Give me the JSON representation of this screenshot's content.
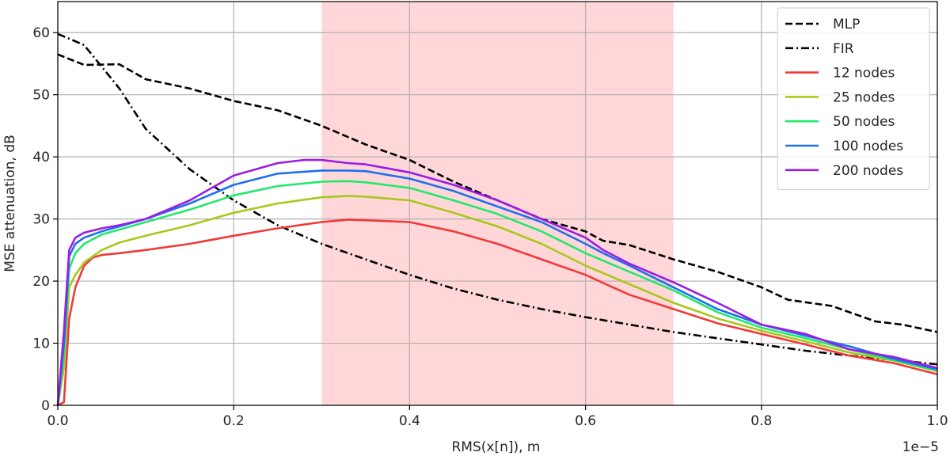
{
  "chart_data": {
    "type": "line",
    "title": "",
    "xlabel": "RMS(x[n]), m",
    "ylabel": "MSE attenuation, dB",
    "x_offset_label": "1e−5",
    "xlim": [
      0.0,
      1.0
    ],
    "ylim": [
      0,
      65
    ],
    "x_ticks": [
      0.0,
      0.2,
      0.4,
      0.6,
      0.8,
      1.0
    ],
    "x_tick_labels": [
      "0.0",
      "0.2",
      "0.4",
      "0.6",
      "0.8",
      "1.0"
    ],
    "y_ticks": [
      0,
      10,
      20,
      30,
      40,
      50,
      60
    ],
    "y_tick_labels": [
      "0",
      "10",
      "20",
      "30",
      "40",
      "50",
      "60"
    ],
    "grid": true,
    "legend_position": "top-right",
    "shaded_region": {
      "x": [
        0.3,
        0.7
      ],
      "color": "#ffd7d9"
    },
    "series": [
      {
        "name": "MLP",
        "color": "#000000",
        "dash": "dashed",
        "x": [
          0.0,
          0.03,
          0.07,
          0.1,
          0.15,
          0.2,
          0.25,
          0.3,
          0.35,
          0.4,
          0.45,
          0.5,
          0.55,
          0.6,
          0.62,
          0.65,
          0.7,
          0.75,
          0.8,
          0.83,
          0.88,
          0.93,
          0.96,
          1.0
        ],
        "y": [
          56.5,
          54.8,
          54.9,
          52.5,
          51.0,
          49.0,
          47.5,
          45.0,
          42.0,
          39.5,
          36.0,
          33.0,
          30.0,
          28.0,
          26.5,
          25.8,
          23.5,
          21.5,
          19.0,
          17.0,
          16.0,
          13.5,
          13.0,
          11.8
        ]
      },
      {
        "name": "FIR",
        "color": "#000000",
        "dash": "dashdot",
        "x": [
          0.0,
          0.03,
          0.07,
          0.1,
          0.15,
          0.2,
          0.25,
          0.3,
          0.35,
          0.4,
          0.45,
          0.5,
          0.55,
          0.6,
          0.65,
          0.7,
          0.75,
          0.8,
          0.85,
          0.9,
          0.95,
          1.0
        ],
        "y": [
          59.8,
          58.0,
          51.0,
          44.5,
          38.0,
          33.0,
          29.0,
          26.0,
          23.5,
          21.0,
          18.8,
          17.0,
          15.5,
          14.2,
          13.0,
          11.8,
          10.8,
          9.8,
          8.8,
          8.0,
          7.3,
          6.6
        ]
      },
      {
        "name": "12 nodes",
        "color": "#f03a3a",
        "dash": "solid",
        "x": [
          0.0,
          0.007,
          0.013,
          0.02,
          0.03,
          0.04,
          0.05,
          0.07,
          0.1,
          0.15,
          0.2,
          0.25,
          0.3,
          0.33,
          0.35,
          0.4,
          0.45,
          0.5,
          0.55,
          0.6,
          0.62,
          0.65,
          0.7,
          0.75,
          0.8,
          0.85,
          0.9,
          0.95,
          1.0
        ],
        "y": [
          0.0,
          0.5,
          14.0,
          19.0,
          22.5,
          23.8,
          24.2,
          24.5,
          25.0,
          26.0,
          27.3,
          28.5,
          29.5,
          29.9,
          29.8,
          29.5,
          28.0,
          26.0,
          23.5,
          21.0,
          19.7,
          17.8,
          15.5,
          13.2,
          11.5,
          9.8,
          8.0,
          6.8,
          5.0
        ]
      },
      {
        "name": "25 nodes",
        "color": "#a8c81c",
        "dash": "solid",
        "x": [
          0.0,
          0.007,
          0.013,
          0.02,
          0.03,
          0.05,
          0.07,
          0.1,
          0.15,
          0.2,
          0.25,
          0.3,
          0.33,
          0.35,
          0.4,
          0.45,
          0.5,
          0.55,
          0.6,
          0.65,
          0.7,
          0.75,
          0.8,
          0.85,
          0.9,
          0.95,
          1.0
        ],
        "y": [
          0.0,
          6.0,
          19.0,
          21.0,
          23.0,
          25.0,
          26.2,
          27.3,
          29.0,
          31.0,
          32.5,
          33.5,
          33.7,
          33.6,
          33.0,
          31.0,
          28.8,
          26.0,
          22.5,
          19.5,
          16.5,
          14.0,
          12.0,
          10.3,
          8.5,
          7.2,
          5.5
        ]
      },
      {
        "name": "50 nodes",
        "color": "#22e86d",
        "dash": "solid",
        "x": [
          0.0,
          0.007,
          0.013,
          0.02,
          0.03,
          0.05,
          0.07,
          0.1,
          0.15,
          0.2,
          0.25,
          0.3,
          0.33,
          0.35,
          0.4,
          0.45,
          0.5,
          0.55,
          0.6,
          0.65,
          0.7,
          0.75,
          0.8,
          0.85,
          0.9,
          0.95,
          1.0
        ],
        "y": [
          0.0,
          8.0,
          22.0,
          24.5,
          26.0,
          27.5,
          28.3,
          29.5,
          31.5,
          33.8,
          35.3,
          36.0,
          36.1,
          35.9,
          35.0,
          33.0,
          30.8,
          28.0,
          24.5,
          21.5,
          18.5,
          15.0,
          12.5,
          10.8,
          9.0,
          7.3,
          5.6
        ]
      },
      {
        "name": "100 nodes",
        "color": "#1f6fef",
        "dash": "solid",
        "x": [
          0.0,
          0.007,
          0.013,
          0.02,
          0.03,
          0.05,
          0.07,
          0.1,
          0.15,
          0.2,
          0.25,
          0.3,
          0.33,
          0.35,
          0.4,
          0.45,
          0.5,
          0.55,
          0.6,
          0.62,
          0.65,
          0.7,
          0.75,
          0.8,
          0.85,
          0.9,
          0.95,
          1.0
        ],
        "y": [
          0.0,
          10.0,
          24.0,
          26.0,
          27.0,
          28.0,
          28.8,
          30.0,
          32.5,
          35.5,
          37.3,
          37.8,
          37.8,
          37.7,
          36.5,
          34.5,
          32.0,
          29.5,
          26.0,
          24.5,
          22.5,
          19.0,
          15.5,
          13.0,
          11.2,
          9.5,
          7.5,
          5.8
        ]
      },
      {
        "name": "200 nodes",
        "color": "#9b1de3",
        "dash": "solid",
        "x": [
          0.0,
          0.007,
          0.013,
          0.02,
          0.03,
          0.05,
          0.07,
          0.1,
          0.15,
          0.2,
          0.25,
          0.28,
          0.3,
          0.33,
          0.35,
          0.4,
          0.45,
          0.5,
          0.55,
          0.6,
          0.62,
          0.65,
          0.7,
          0.75,
          0.8,
          0.85,
          0.9,
          0.95,
          1.0
        ],
        "y": [
          0.0,
          12.0,
          25.0,
          27.0,
          27.8,
          28.5,
          29.0,
          30.0,
          33.0,
          37.0,
          39.0,
          39.5,
          39.5,
          39.0,
          38.8,
          37.5,
          35.5,
          33.0,
          30.0,
          27.0,
          25.0,
          22.8,
          19.8,
          16.5,
          13.0,
          11.5,
          9.0,
          7.8,
          6.0
        ]
      }
    ]
  }
}
